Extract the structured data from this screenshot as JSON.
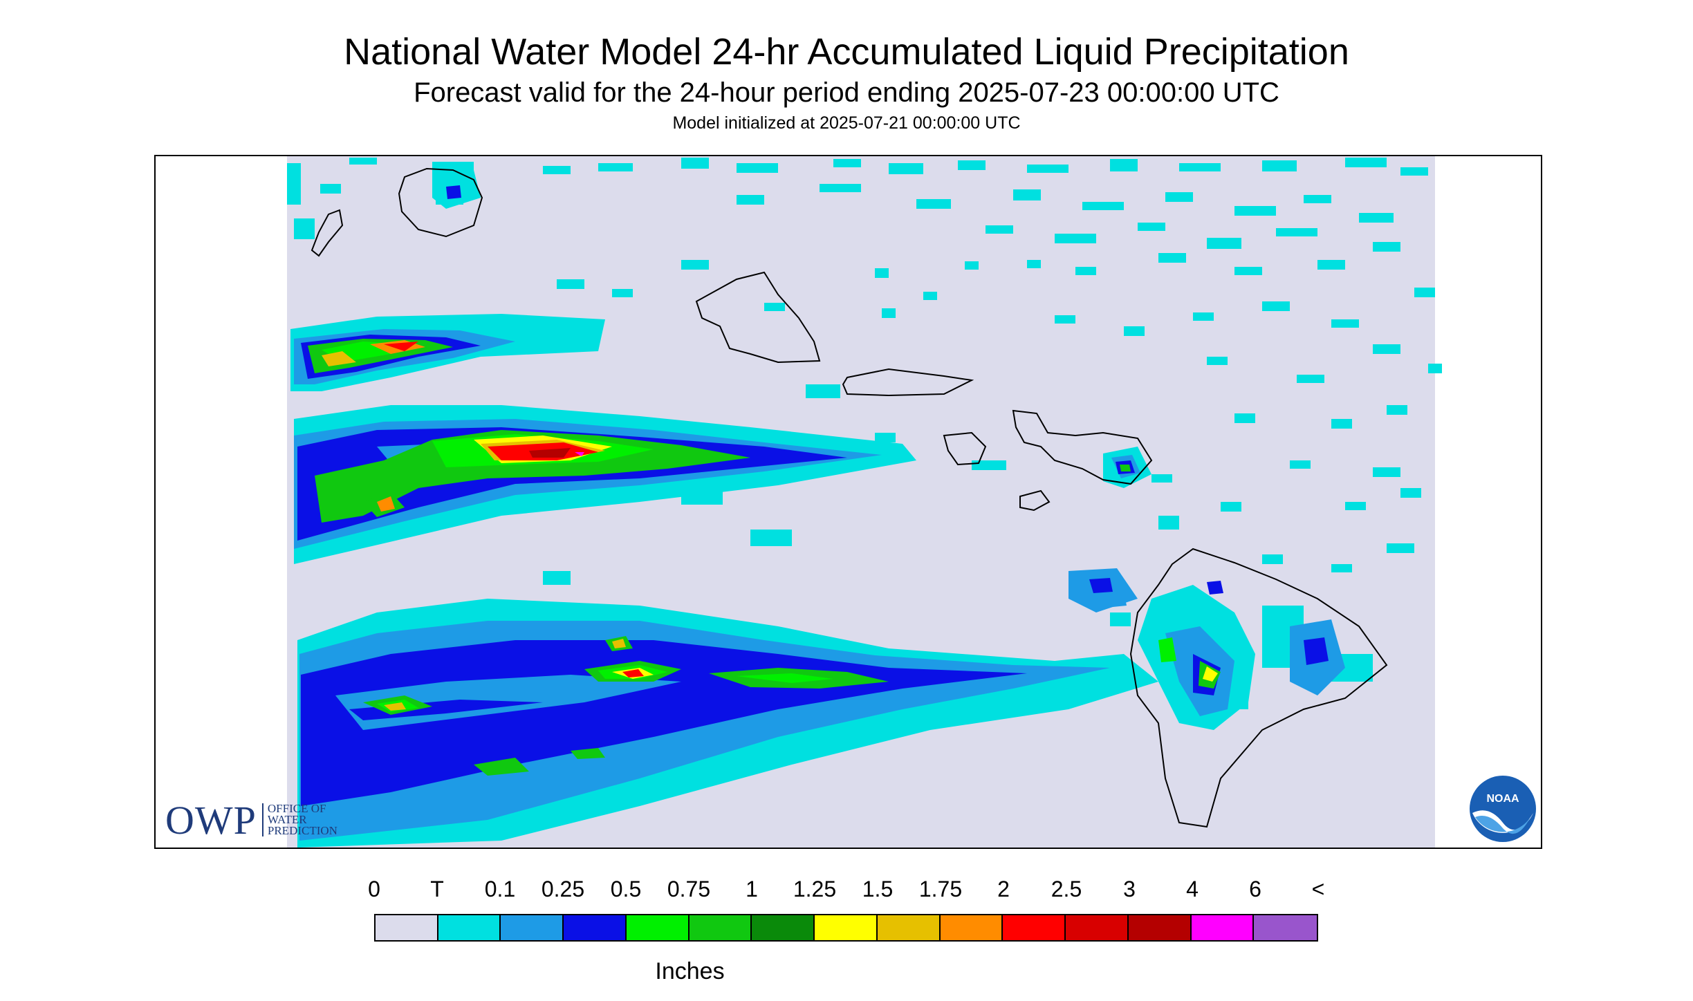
{
  "title": "National Water Model 24-hr Accumulated Liquid Precipitation",
  "subtitle": "Forecast valid for the 24-hour period ending 2025-07-23 00:00:00 UTC",
  "init_line": "Model initialized at 2025-07-21 00:00:00 UTC",
  "logos": {
    "owp": {
      "letters": "OWP",
      "line1": "OFFICE OF",
      "line2": "WATER",
      "line3": "PREDICTION"
    },
    "noaa": {
      "text": "NOAA"
    }
  },
  "legend": {
    "title": "Inches",
    "labels": [
      "0",
      "T",
      "0.1",
      "0.25",
      "0.5",
      "0.75",
      "1",
      "1.25",
      "1.5",
      "1.75",
      "2",
      "2.5",
      "3",
      "4",
      "6",
      "<"
    ],
    "colors": [
      "#dcdcec",
      "#00e0e0",
      "#1e9be6",
      "#0a10e6",
      "#00f000",
      "#10c810",
      "#0a8a0a",
      "#ffff00",
      "#e6c000",
      "#ff8c00",
      "#ff0000",
      "#d80000",
      "#b40000",
      "#ff00ff",
      "#9955cc"
    ]
  },
  "map": {
    "islands": [
      "Kauai",
      "Niihau",
      "Oahu",
      "Molokai",
      "Lanai",
      "Maui",
      "Kahoolawe",
      "Hawaii"
    ]
  }
}
